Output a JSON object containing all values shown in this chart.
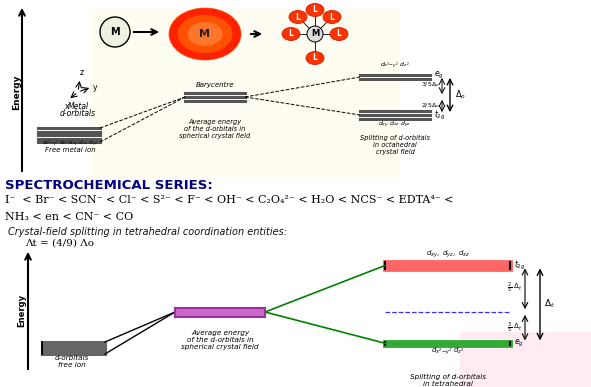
{
  "bg_color": "#ffffff",
  "title_text": "SPECTROCHEMICAL SERIES:",
  "series_line1": "I⁻  < Br⁻ < SCN⁻ < Cl⁻ < S²⁻ < F⁻ < OH⁻ < C₂O₄²⁻ < H₂O < NCS⁻ < EDTA⁴⁻ <",
  "series_line2": "NH₃ < en < CN⁻ < CO",
  "tetrahedral_title": "Crystal-field splitting in tetrahedral coordination entities:",
  "delta_eq": "Λt = (4/9) Λo",
  "watermark_color": "#fffacd",
  "pink_bkg": "#ffb6c1"
}
